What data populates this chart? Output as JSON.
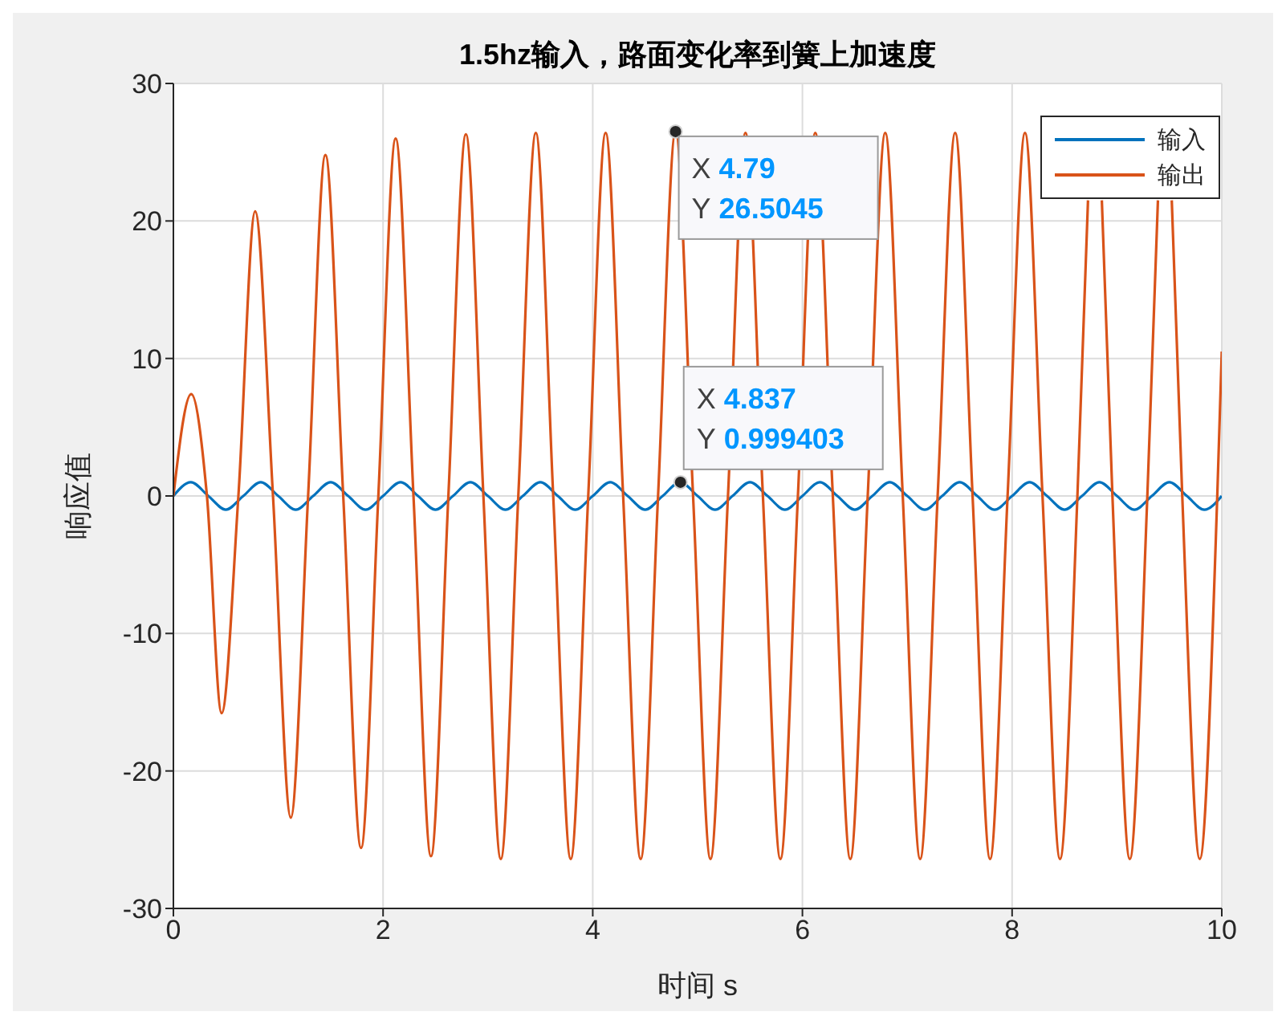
{
  "chart_data": {
    "type": "line",
    "title": "1.5hz输入，路面变化率到簧上加速度",
    "xlabel": "时间 s",
    "ylabel": "响应值",
    "xlim": [
      0,
      10
    ],
    "xticks": [
      0,
      2,
      4,
      6,
      8,
      10
    ],
    "ylim": [
      -30,
      30
    ],
    "yticks": [
      -30,
      -20,
      -10,
      0,
      10,
      20,
      30
    ],
    "grid": true,
    "legend": "top right",
    "line_style": "solid",
    "marker": "none",
    "series": [
      {
        "name": "输入",
        "color": "#0072bd",
        "x": [
          0,
          0.167,
          0.333,
          0.5,
          0.667,
          0.833,
          1,
          1.167,
          1.333,
          1.5,
          1.667,
          1.833,
          2,
          2.167,
          2.333,
          2.5,
          2.667,
          2.833,
          3,
          3.167,
          3.333,
          3.5,
          3.667,
          3.833,
          4,
          4.167,
          4.333,
          4.5,
          4.667,
          4.833,
          5,
          5.167,
          5.333,
          5.5,
          5.667,
          5.833,
          6,
          6.167,
          6.333,
          6.5,
          6.667,
          6.833,
          7,
          7.167,
          7.333,
          7.5,
          7.667,
          7.833,
          8,
          8.167,
          8.333,
          8.5,
          8.667,
          8.833,
          9,
          9.167,
          9.333,
          9.5,
          9.667,
          9.833,
          10
        ],
        "values": [
          0,
          1,
          0,
          -1,
          0,
          1,
          0,
          -1,
          0,
          1,
          0,
          -1,
          0,
          1,
          0,
          -1,
          0,
          1,
          0,
          -1,
          0,
          1,
          0,
          -1,
          0,
          1,
          0,
          -1,
          0,
          1,
          0,
          -1,
          0,
          1,
          0,
          -1,
          0,
          1,
          0,
          -1,
          0,
          1,
          0,
          -1,
          0,
          1,
          0,
          -1,
          0,
          1,
          0,
          -1,
          0,
          1,
          0,
          -1,
          0,
          1,
          0,
          -1,
          0
        ]
      },
      {
        "name": "输出",
        "color": "#d95319",
        "x": [
          0,
          0.17,
          0.32,
          0.46,
          0.62,
          0.78,
          0.95,
          1.12,
          1.285,
          1.45,
          1.62,
          1.79,
          1.955,
          2.12,
          2.29,
          2.457,
          2.623,
          2.79,
          2.957,
          3.123,
          3.29,
          3.457,
          3.623,
          3.79,
          3.957,
          4.123,
          4.29,
          4.457,
          4.623,
          4.79,
          4.957,
          5.123,
          5.29,
          5.457,
          5.623,
          5.79,
          5.957,
          6.123,
          6.29,
          6.457,
          6.623,
          6.79,
          6.957,
          7.123,
          7.29,
          7.457,
          7.623,
          7.79,
          7.957,
          8.123,
          8.29,
          8.457,
          8.623,
          8.724,
          8.79,
          8.856,
          8.957,
          9.123,
          9.29,
          9.391,
          9.457,
          9.523,
          9.623,
          9.79,
          9.957,
          10
        ],
        "values": [
          0,
          7.4,
          0,
          -15.8,
          0,
          20.7,
          0,
          -23.4,
          0,
          24.8,
          0,
          -25.6,
          0,
          26,
          0,
          -26.2,
          0,
          26.3,
          0,
          -26.4,
          0,
          26.4,
          0,
          -26.4,
          0,
          26.4,
          0,
          -26.4,
          0,
          26.5,
          0,
          -26.4,
          0,
          26.4,
          0,
          -26.4,
          0,
          26.4,
          0,
          -26.4,
          0,
          26.4,
          0,
          -26.4,
          0,
          26.4,
          0,
          -26.4,
          0,
          26.4,
          0,
          -26.4,
          0,
          21.5,
          null,
          21.5,
          0,
          -26.4,
          0,
          21.5,
          null,
          21.5,
          0,
          -26.4,
          0,
          10.5
        ]
      }
    ],
    "annotations": [
      {
        "text": "X 4.79\nY 26.5045",
        "x": 4.79,
        "y": 26.5045
      },
      {
        "text": "X 4.837\nY 0.999403",
        "x": 4.837,
        "y": 0.999403
      }
    ]
  }
}
